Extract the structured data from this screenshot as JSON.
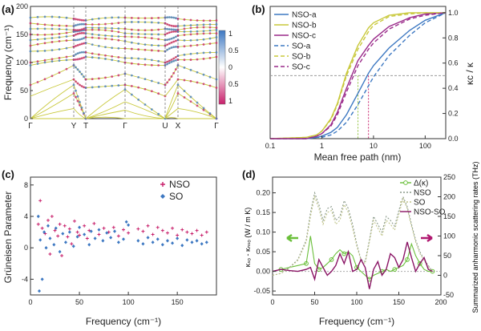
{
  "panels": {
    "a": {
      "label": "(a)",
      "ylabel": "Frequency (cm⁻¹)",
      "ylim": [
        0,
        200
      ],
      "y_ticks": [
        "0",
        "50",
        "100",
        "150",
        "200"
      ],
      "x_points": [
        "Γ",
        "Y",
        "T",
        "Γ",
        "U",
        "X",
        "Γ"
      ],
      "colorbar_ticks": [
        "1",
        "0.5",
        "0",
        "0.5",
        "1"
      ],
      "colors": {
        "high": "#3d78c2",
        "low": "#c8206b",
        "line": "#c8c83a"
      }
    },
    "b": {
      "label": "(b)",
      "xlabel": "Mean free path (nm)",
      "ylabel": "κᴄ / κ",
      "x_ticks": [
        "0.1",
        "1",
        "10",
        "100"
      ],
      "y_ticks": [
        "0.0",
        "0.2",
        "0.4",
        "0.6",
        "0.8",
        "1.0"
      ],
      "legend": [
        "NSO-a",
        "NSO-b",
        "NSO-c",
        "SO-a",
        "SO-b",
        "SO-c"
      ]
    },
    "c": {
      "label": "(c)",
      "xlabel": "Frequency (cm⁻¹)",
      "ylabel": "Grüneisen Parameter",
      "x_ticks": [
        "0",
        "50",
        "100",
        "150"
      ],
      "y_ticks": [
        "-4",
        "0",
        "4",
        "8"
      ],
      "legend": [
        "NSO",
        "SO"
      ]
    },
    "d": {
      "label": "(d)",
      "xlabel": "Frequency (cm⁻¹)",
      "ylabel_left": "κₛₒ - κₙₛₒ (W / m K)",
      "ylabel_right": "Summarized anharmonic scattering rates (THz)",
      "x_ticks": [
        "0",
        "50",
        "100",
        "150",
        "200"
      ],
      "y_ticks_left": [
        "-0.05",
        "0.00",
        "0.05",
        "0.10",
        "0.15",
        "0.20"
      ],
      "y_ticks_right": [
        "-50",
        "0",
        "50",
        "100",
        "150",
        "200",
        "250"
      ],
      "legend": [
        "Δ(κ)",
        "NSO",
        "SO",
        "NSO-SO"
      ]
    }
  },
  "chart_data": [
    {
      "type": "line",
      "title": "",
      "panel": "a",
      "xlabel": "",
      "ylabel": "Frequency (cm⁻¹)",
      "ylim": [
        0,
        200
      ],
      "x": [
        "Γ",
        "Y",
        "T",
        "Γ",
        "U",
        "X",
        "Γ"
      ],
      "note_colorbar_range": [
        -1,
        1
      ]
    },
    {
      "type": "line",
      "panel": "b",
      "xlabel": "Mean free path (nm)",
      "ylabel": "κᴄ / κ",
      "xscale": "log",
      "xlim": [
        0.1,
        250
      ],
      "ylim": [
        0,
        1.05
      ],
      "x": [
        0.1,
        0.5,
        0.8,
        1,
        1.5,
        2,
        3,
        5,
        8,
        10,
        20,
        50,
        100,
        250
      ],
      "series": [
        {
          "name": "NSO-a",
          "values": [
            0,
            0,
            0.01,
            0.02,
            0.05,
            0.09,
            0.19,
            0.36,
            0.52,
            0.58,
            0.72,
            0.86,
            0.94,
            1.0
          ]
        },
        {
          "name": "NSO-b",
          "values": [
            0,
            0.01,
            0.03,
            0.06,
            0.16,
            0.28,
            0.52,
            0.74,
            0.88,
            0.92,
            0.98,
            1.0,
            1.0,
            1.0
          ]
        },
        {
          "name": "NSO-c",
          "values": [
            0,
            0,
            0.02,
            0.04,
            0.11,
            0.21,
            0.4,
            0.62,
            0.74,
            0.79,
            0.89,
            0.96,
            0.99,
            1.0
          ]
        },
        {
          "name": "SO-a",
          "values": [
            0,
            0,
            0.01,
            0.01,
            0.03,
            0.06,
            0.13,
            0.27,
            0.42,
            0.49,
            0.66,
            0.82,
            0.92,
            1.0
          ]
        },
        {
          "name": "SO-b",
          "values": [
            0,
            0.01,
            0.03,
            0.06,
            0.15,
            0.27,
            0.5,
            0.71,
            0.85,
            0.9,
            0.97,
            0.99,
            1.0,
            1.0
          ]
        },
        {
          "name": "SO-c",
          "values": [
            0,
            0,
            0.02,
            0.04,
            0.1,
            0.19,
            0.37,
            0.58,
            0.71,
            0.76,
            0.87,
            0.95,
            0.98,
            1.0
          ]
        }
      ],
      "reference_line_y": 0.5,
      "reference_markers_x": [
        5,
        8
      ]
    },
    {
      "type": "scatter",
      "panel": "c",
      "xlabel": "Frequency (cm⁻¹)",
      "ylabel": "Grüneisen Parameter",
      "xlim": [
        0,
        190
      ],
      "ylim": [
        -6,
        9
      ],
      "series": [
        {
          "name": "NSO",
          "points": [
            [
              8,
              3
            ],
            [
              10,
              6
            ],
            [
              12,
              2.5
            ],
            [
              15,
              1.8
            ],
            [
              18,
              3.5
            ],
            [
              20,
              -0.8
            ],
            [
              22,
              4
            ],
            [
              25,
              2.2
            ],
            [
              28,
              1.5
            ],
            [
              30,
              3
            ],
            [
              32,
              -1
            ],
            [
              35,
              2.8
            ],
            [
              38,
              1.4
            ],
            [
              40,
              2.4
            ],
            [
              42,
              0.5
            ],
            [
              45,
              3.4
            ],
            [
              48,
              2
            ],
            [
              50,
              1.6
            ],
            [
              55,
              2.8
            ],
            [
              58,
              1.2
            ],
            [
              60,
              2.2
            ],
            [
              65,
              3.1
            ],
            [
              70,
              1.7
            ],
            [
              75,
              2.5
            ],
            [
              80,
              2
            ],
            [
              85,
              2.6
            ],
            [
              90,
              1.5
            ],
            [
              95,
              2.3
            ],
            [
              100,
              1.9
            ],
            [
              110,
              2.4
            ],
            [
              115,
              2.1
            ],
            [
              120,
              2.8
            ],
            [
              125,
              1.7
            ],
            [
              130,
              2.6
            ],
            [
              135,
              2.2
            ],
            [
              140,
              1.9
            ],
            [
              145,
              2.5
            ],
            [
              150,
              1.6
            ],
            [
              155,
              2.3
            ],
            [
              160,
              2
            ],
            [
              165,
              1.8
            ],
            [
              170,
              2.2
            ],
            [
              175,
              1.6
            ],
            [
              180,
              2
            ]
          ]
        },
        {
          "name": "SO",
          "points": [
            [
              8,
              4
            ],
            [
              9,
              -5.5
            ],
            [
              10,
              1
            ],
            [
              12,
              -4
            ],
            [
              14,
              2
            ],
            [
              16,
              0
            ],
            [
              18,
              2.8
            ],
            [
              20,
              1.2
            ],
            [
              24,
              0.4
            ],
            [
              26,
              2.5
            ],
            [
              30,
              -0.5
            ],
            [
              33,
              1.8
            ],
            [
              36,
              0.7
            ],
            [
              40,
              2
            ],
            [
              44,
              0.2
            ],
            [
              48,
              1.4
            ],
            [
              50,
              2.6
            ],
            [
              55,
              1.7
            ],
            [
              60,
              0.4
            ],
            [
              62,
              2.1
            ],
            [
              66,
              1.2
            ],
            [
              70,
              2.3
            ],
            [
              74,
              0.9
            ],
            [
              78,
              1.9
            ],
            [
              82,
              1.3
            ],
            [
              86,
              2.1
            ],
            [
              90,
              0.7
            ],
            [
              95,
              1.1
            ],
            [
              98,
              3.3
            ],
            [
              100,
              2.9
            ],
            [
              110,
              0.9
            ],
            [
              115,
              0.5
            ],
            [
              120,
              1.3
            ],
            [
              125,
              0.7
            ],
            [
              130,
              1.1
            ],
            [
              135,
              0.4
            ],
            [
              140,
              0.9
            ],
            [
              145,
              0.6
            ],
            [
              150,
              1.2
            ],
            [
              155,
              0.3
            ],
            [
              160,
              1
            ],
            [
              165,
              0.7
            ],
            [
              170,
              0.9
            ],
            [
              175,
              0.5
            ],
            [
              180,
              0.7
            ]
          ]
        }
      ]
    },
    {
      "type": "line",
      "panel": "d",
      "xlabel": "Frequency (cm⁻¹)",
      "ylabel": "κₛₒ - κₙₛₒ (W / m K)",
      "ylabel_right": "Summarized anharmonic scattering rates (THz)",
      "xlim": [
        0,
        200
      ],
      "ylim": [
        -0.06,
        0.24
      ],
      "ylim_right": [
        -50,
        250
      ],
      "x": [
        0,
        10,
        20,
        30,
        40,
        45,
        50,
        55,
        60,
        65,
        70,
        75,
        80,
        85,
        90,
        95,
        100,
        105,
        110,
        115,
        120,
        125,
        130,
        135,
        140,
        145,
        150,
        155,
        160,
        165,
        170,
        175,
        180,
        185,
        190
      ],
      "series": [
        {
          "name": "Δ(κ)",
          "axis": "left",
          "values": [
            0,
            0.005,
            0.01,
            0.015,
            0.02,
            0.09,
            0.02,
            0.005,
            0.01,
            0.02,
            0.03,
            0.045,
            0.055,
            0.045,
            0.05,
            0.04,
            0.01,
            0.0,
            -0.01,
            -0.02,
            -0.01,
            -0.005,
            0.0,
            0.005,
            0.0,
            0.005,
            0.01,
            0.015,
            0.03,
            0.07,
            0.04,
            0.02,
            0.005,
            0.0,
            0.0
          ]
        },
        {
          "name": "NSO",
          "axis": "right",
          "values": [
            0,
            5,
            20,
            40,
            90,
            160,
            210,
            180,
            140,
            170,
            175,
            140,
            150,
            190,
            170,
            130,
            80,
            40,
            35,
            90,
            150,
            130,
            110,
            150,
            140,
            125,
            165,
            200,
            175,
            130,
            90,
            60,
            40,
            25,
            10
          ]
        },
        {
          "name": "SO",
          "axis": "right",
          "values": [
            0,
            5,
            18,
            38,
            85,
            150,
            200,
            170,
            130,
            160,
            165,
            130,
            140,
            180,
            160,
            120,
            75,
            38,
            30,
            85,
            140,
            120,
            100,
            140,
            130,
            115,
            155,
            195,
            170,
            125,
            85,
            55,
            38,
            22,
            8
          ]
        },
        {
          "name": "NSO-SO",
          "axis": "left",
          "values": [
            0,
            0.005,
            0.002,
            0.0,
            0.005,
            0.01,
            -0.02,
            0.03,
            0.01,
            -0.01,
            0.0,
            0.015,
            0.045,
            0.02,
            0.05,
            0.0,
            0.005,
            0.03,
            0.01,
            -0.045,
            0.005,
            0.025,
            -0.01,
            0.005,
            0.045,
            0.035,
            0.01,
            0.03,
            0.075,
            0.035,
            0.0,
            0.02,
            0.035,
            0.005,
            0.0
          ]
        }
      ]
    }
  ]
}
